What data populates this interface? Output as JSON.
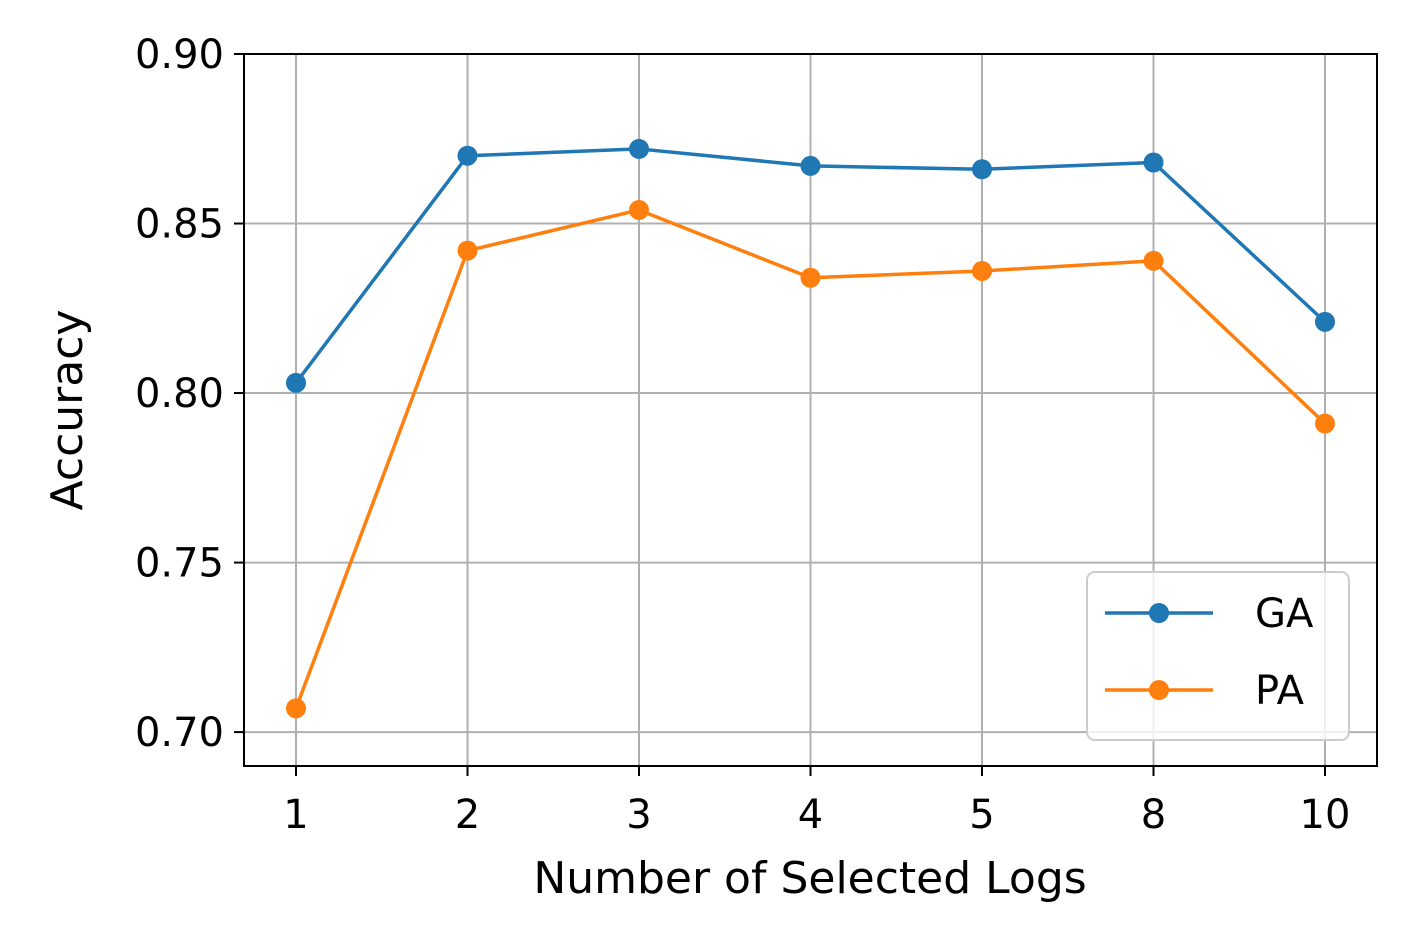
{
  "chart_data": {
    "type": "line",
    "title": "",
    "xlabel": "Number of Selected Logs",
    "ylabel": "Accuracy",
    "categories": [
      "1",
      "2",
      "3",
      "4",
      "5",
      "8",
      "10"
    ],
    "ylim": [
      0.69,
      0.9
    ],
    "yticks": [
      "0.70",
      "0.75",
      "0.80",
      "0.85",
      "0.90"
    ],
    "grid": true,
    "legend_position": "lower-right",
    "series": [
      {
        "name": "GA",
        "color": "#1f77b4",
        "marker": "circle",
        "values": [
          0.803,
          0.87,
          0.872,
          0.867,
          0.866,
          0.868,
          0.821
        ]
      },
      {
        "name": "PA",
        "color": "#ff7f0e",
        "marker": "circle",
        "values": [
          0.707,
          0.842,
          0.854,
          0.834,
          0.836,
          0.839,
          0.791
        ]
      }
    ]
  }
}
